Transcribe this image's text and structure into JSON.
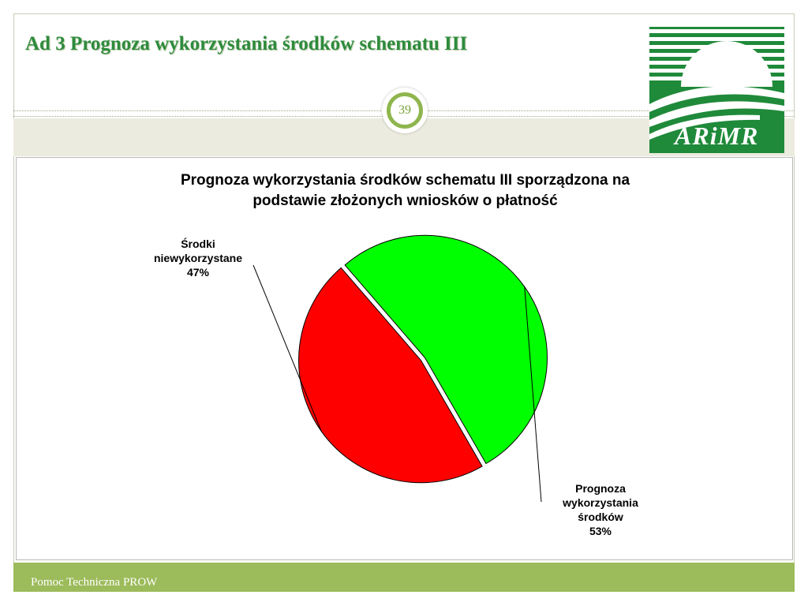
{
  "slide": {
    "title": "Ad 3 Prognoza wykorzystania środków schematu III",
    "page_number": "39",
    "footer": "Pomoc Techniczna PROW",
    "logo_text": "ARiMR",
    "colors": {
      "accent_green": "#2e8b3c",
      "footer_green": "#9cbb5b",
      "logo_green": "#1f8a3a"
    }
  },
  "chart_data": {
    "type": "pie",
    "title_lines": [
      "Prognoza wykorzystania środków schematu III sporządzona na",
      "podstawie złożonych wniosków o płatność"
    ],
    "slices": [
      {
        "label_lines": [
          "Środki",
          "niewykorzystane",
          "47%"
        ],
        "value": 47,
        "color": "#ff0000"
      },
      {
        "label_lines": [
          "Prognoza",
          "wykorzystania",
          "środków",
          "53%"
        ],
        "value": 53,
        "color": "#00ff00"
      }
    ],
    "start_angle_deg": 60,
    "legend": "none"
  }
}
